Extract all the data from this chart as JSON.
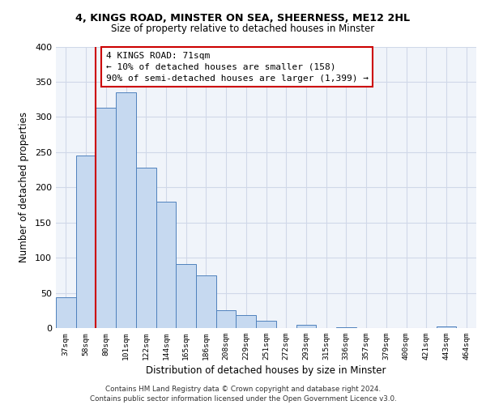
{
  "title1": "4, KINGS ROAD, MINSTER ON SEA, SHEERNESS, ME12 2HL",
  "title2": "Size of property relative to detached houses in Minster",
  "xlabel": "Distribution of detached houses by size in Minster",
  "ylabel": "Number of detached properties",
  "bin_labels": [
    "37sqm",
    "58sqm",
    "80sqm",
    "101sqm",
    "122sqm",
    "144sqm",
    "165sqm",
    "186sqm",
    "208sqm",
    "229sqm",
    "251sqm",
    "272sqm",
    "293sqm",
    "315sqm",
    "336sqm",
    "357sqm",
    "379sqm",
    "400sqm",
    "421sqm",
    "443sqm",
    "464sqm"
  ],
  "bar_heights": [
    44,
    245,
    313,
    335,
    228,
    180,
    91,
    75,
    25,
    18,
    10,
    0,
    5,
    0,
    1,
    0,
    0,
    0,
    0,
    2,
    0
  ],
  "bar_color": "#c6d9f0",
  "bar_edge_color": "#4f81bd",
  "vline_color": "#cc0000",
  "annotation_text": "4 KINGS ROAD: 71sqm\n← 10% of detached houses are smaller (158)\n90% of semi-detached houses are larger (1,399) →",
  "annotation_box_color": "#cc0000",
  "ylim": [
    0,
    400
  ],
  "yticks": [
    0,
    50,
    100,
    150,
    200,
    250,
    300,
    350,
    400
  ],
  "footer1": "Contains HM Land Registry data © Crown copyright and database right 2024.",
  "footer2": "Contains public sector information licensed under the Open Government Licence v3.0.",
  "grid_color": "#d0d8e8",
  "bg_color": "#f0f4fa"
}
